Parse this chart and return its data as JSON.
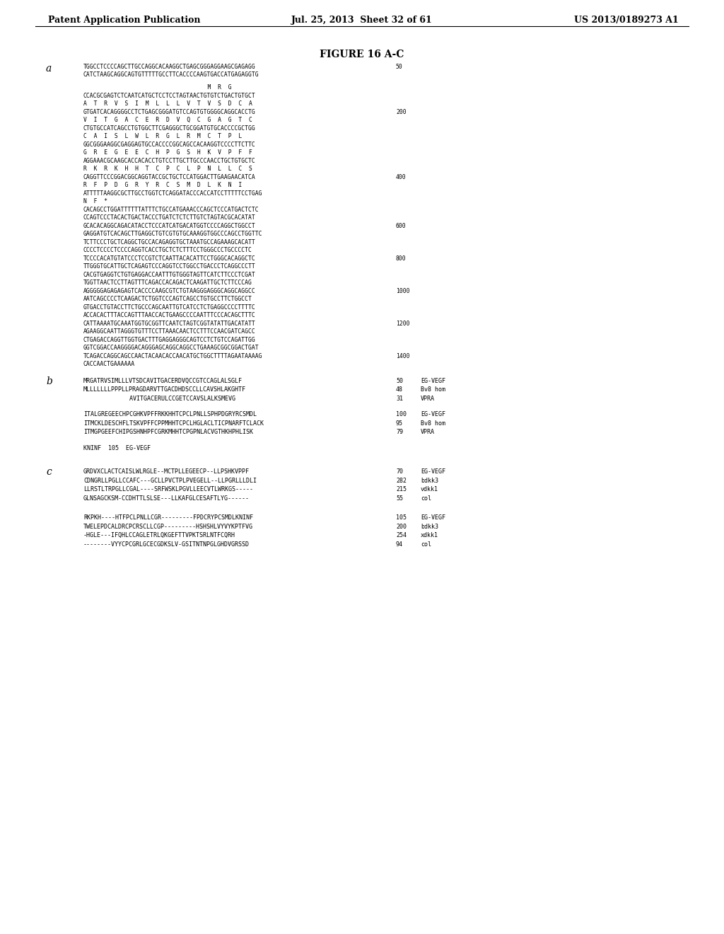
{
  "header_left": "Patent Application Publication",
  "header_mid": "Jul. 25, 2013  Sheet 32 of 61",
  "header_right": "US 2013/0189273 A1",
  "figure_title": "FIGURE 16 A-C",
  "bg_color": "#ffffff",
  "text_color": "#000000",
  "seq_a_lines": [
    [
      "TGGCCTCCCCAGCTTGCCAGGCACAAGGCTGAGCGGGAGGAAGCGAGAGG",
      "50"
    ],
    [
      "CATCTAAGCAGGCAGTGTTTTTGCCTTCACCCCAAGTGACCATGAGAGGTG",
      ""
    ],
    [
      "",
      ""
    ],
    [
      "                                    M  R  G",
      ""
    ],
    [
      "CCACGCGAGTCTCAATCATGCTCCTCCTAGTAACTGTGTCTGACTGTGCT",
      ""
    ],
    [
      "A  T  R  V  S  I  M  L  L  L  V  T  V  S  D  C  A",
      ""
    ],
    [
      "GTGATCACAGGGGCCTCTGAGCGGGATGTCCAGTGTGGGGCAGGCACCTG",
      "200"
    ],
    [
      "V  I  T  G  A  C  E  R  D  V  Q  C  G  A  G  T  C",
      ""
    ],
    [
      "CTGTGCCATCAGCCTGTGGCTTCGAGGGCTGCGGATGTGCACCCCGCTGG",
      ""
    ],
    [
      "C  A  I  S  L  W  L  R  G  L  R  M  C  T  P  L",
      ""
    ],
    [
      "GGCGGGAAGGCGAGGAGTGCCACCCCGGCAGCCACAAGGTCCCCTTCTTC",
      ""
    ],
    [
      "G  R  E  G  E  E  C  H  P  G  S  H  K  V  P  F  F",
      ""
    ],
    [
      "AGGAAACGCAAGCACCACACCTGTCCTTGCTTGCCCAACCTGCTGTGCTC",
      ""
    ],
    [
      "R  K  R  K  H  H  T  C  P  C  L  P  N  L  L  C  S",
      ""
    ],
    [
      "CAGGTTCCCGGACGGCAGGTACCGCTGCTCCATGGACTTGAAGAACATCA",
      "400"
    ],
    [
      "R  F  P  D  G  R  Y  R  C  S  M  D  L  K  N  I",
      ""
    ],
    [
      "ATTTTTAAGGCGCTTGCCTGGTCTCAGGATACCCACCATCCTTTTTCCTGAG",
      ""
    ],
    [
      "N  F  *",
      ""
    ],
    [
      "CACAGCCTGGATTTTTTATTTCTGCCATGAAACCCAGCTCCCATGACTCTC",
      ""
    ],
    [
      "CCAGTCCCTACACTGACTACCCTGATCTCTCTTGTCTAGTACGCACATAT",
      ""
    ],
    [
      "GCACACAGGCAGACATACCTCCCATCATGACATGGTCCCCAGGCTGGCCT",
      "600"
    ],
    [
      "GAGGATGTCACAGCTTGAGGCTGTCGTGTGCAAAGGTGGCCCAGCCTGGTTC",
      ""
    ],
    [
      "TCTTCCCTGCTCAGGCTGCCACAGAGGTGCTAAATGCCAGAAAGCACATT",
      ""
    ],
    [
      "CCCCTCCCCTCCCCAGGTCACCTGCTCTCTTTCCTGGGCCCTGCCCCTC",
      ""
    ],
    [
      "TCCCCACATGTATCCCTCCGTCTCAATTACACATTCCTGGGCACAGGCTC",
      "800"
    ],
    [
      "TTGGGTGCATTGCTCAGAGTCCCAGGTCCTGGCCTGACCCTCAGGCCCTT",
      ""
    ],
    [
      "CACGTGAGGTCTGTGAGGACCAATTTGTGGGTAGTTCATCTTCCCTCGAT",
      ""
    ],
    [
      "TGGTTAACTCCTTAGTTTCAGACCACAGACTCAAGATTGCTCTTCCCAG",
      ""
    ],
    [
      "AGGGGGAGAGAGAGTCACCCCAAGCGTCTGTAAGGGAGGGCAGGCAGGCC",
      "1000"
    ],
    [
      "AATCAGCCCCTCAAGACTCTGGTCCCAGTCAGCCTGTGCCTTCTGGCCT",
      ""
    ],
    [
      "GTGACCTGTACCTTCTGCCCAGCAATTGTCATCCTCTGAGGCCCCTTTTC",
      ""
    ],
    [
      "ACCACACTTTACCAGTTTAACCACTGAAGCCCCAATTTCCCACAGCTTTC",
      ""
    ],
    [
      "CATTAAAATGCAAATGGTGCGGTTCAATCTAGTCGGTATATTGACATATT",
      "1200"
    ],
    [
      "AGAAGGCAATTAGGGTGTTTCCTTAAACAACTCCTTTCCAACGATCAGCC",
      ""
    ],
    [
      "CTGAGACCAGGTTGGTGACTTTGAGGAGGGCAGTCCTCTGTCCAGATTGG",
      ""
    ],
    [
      "GGTCGGACCAAGGGGACAGGGAGCAGGCAGGCCTGAAAGCGGCGGACTGAT",
      ""
    ],
    [
      "TCAGACCAGGCAGCCAACTACAACACCAACATGCTGGCTTTTAGAATAAAAG",
      "1400"
    ],
    [
      "CACCAACTGAAAAAA",
      ""
    ]
  ],
  "seq_b1_lines": [
    [
      "MRGATRVSIMLLLVTSDCAVITGACERDVQCCGTCCAGLALSGLF",
      "50",
      "EG-VEGF"
    ],
    [
      "MLLLLLLLPPPLLPRAGDARVTTGACDHDSCCLLCAVSHLAKGHTF",
      "48",
      "Bv8 hom"
    ],
    [
      "             AVITGACERULCCGETCCAVSLALKSMEVG",
      "31",
      "VPRA"
    ]
  ],
  "seq_b2_lines": [
    [
      "ITALGREGEECHPCGHKVPFFRKKHHTCPCLPNLLSPHPDGRYRCSMDL",
      "100",
      "EG-VEGF"
    ],
    [
      "ITMCKLDESCHFLTSKVPFFCPPMHHTCPCLHGLACLTICPNARFTCLACK",
      "95",
      "Bv8 hom"
    ],
    [
      "ITMGPGEEFCHIPGSHNHPFCGRKMHHTCPGPNLACVGTHKHPHLISK",
      "79",
      "VPRA"
    ]
  ],
  "seq_b3_line": "KNINF  105  EG-VEGF",
  "seq_c1_lines": [
    [
      "GRDVXCLACTCAISLWLRGLE--MCTPLLEGEECP--LLPSHKVPPF",
      "70",
      "EG-VEGF"
    ],
    [
      "CDNGRLLPGLLCCAFC---GCLLPVCTPLPVEGELL--LLPGRLLLDLI",
      "282",
      "bdkk3"
    ],
    [
      "LLRSTLTRPGLLCGAL----SRFWSKLPGVLLEECVTLWRKGS-----",
      "215",
      "vdkk1"
    ],
    [
      "GLNSAGCKSM-CCDHTTLSLSE---LLKAFGLCESAFTLYG------",
      "55",
      "col"
    ]
  ],
  "seq_c2_lines": [
    [
      "RKPKH----HTFPCLPNLLCGR---------FPDCRYPCSMDLKNINF",
      "105",
      "EG-VEGF"
    ],
    [
      "TWELEPDCALDRCPCRSCLLCGP---------HSHSHLVYVYKPTFVG",
      "200",
      "bdkk3"
    ],
    [
      "-HGLE---IFQHLCCAGLETRLQKGEFTTVPKTSRLNTFCQRH",
      "254",
      "xdkk1"
    ],
    [
      "--------VYYCPCGRLGCECGDKSLV-GSITNTNPGLGHDVGRSSD",
      "94",
      "col"
    ]
  ]
}
